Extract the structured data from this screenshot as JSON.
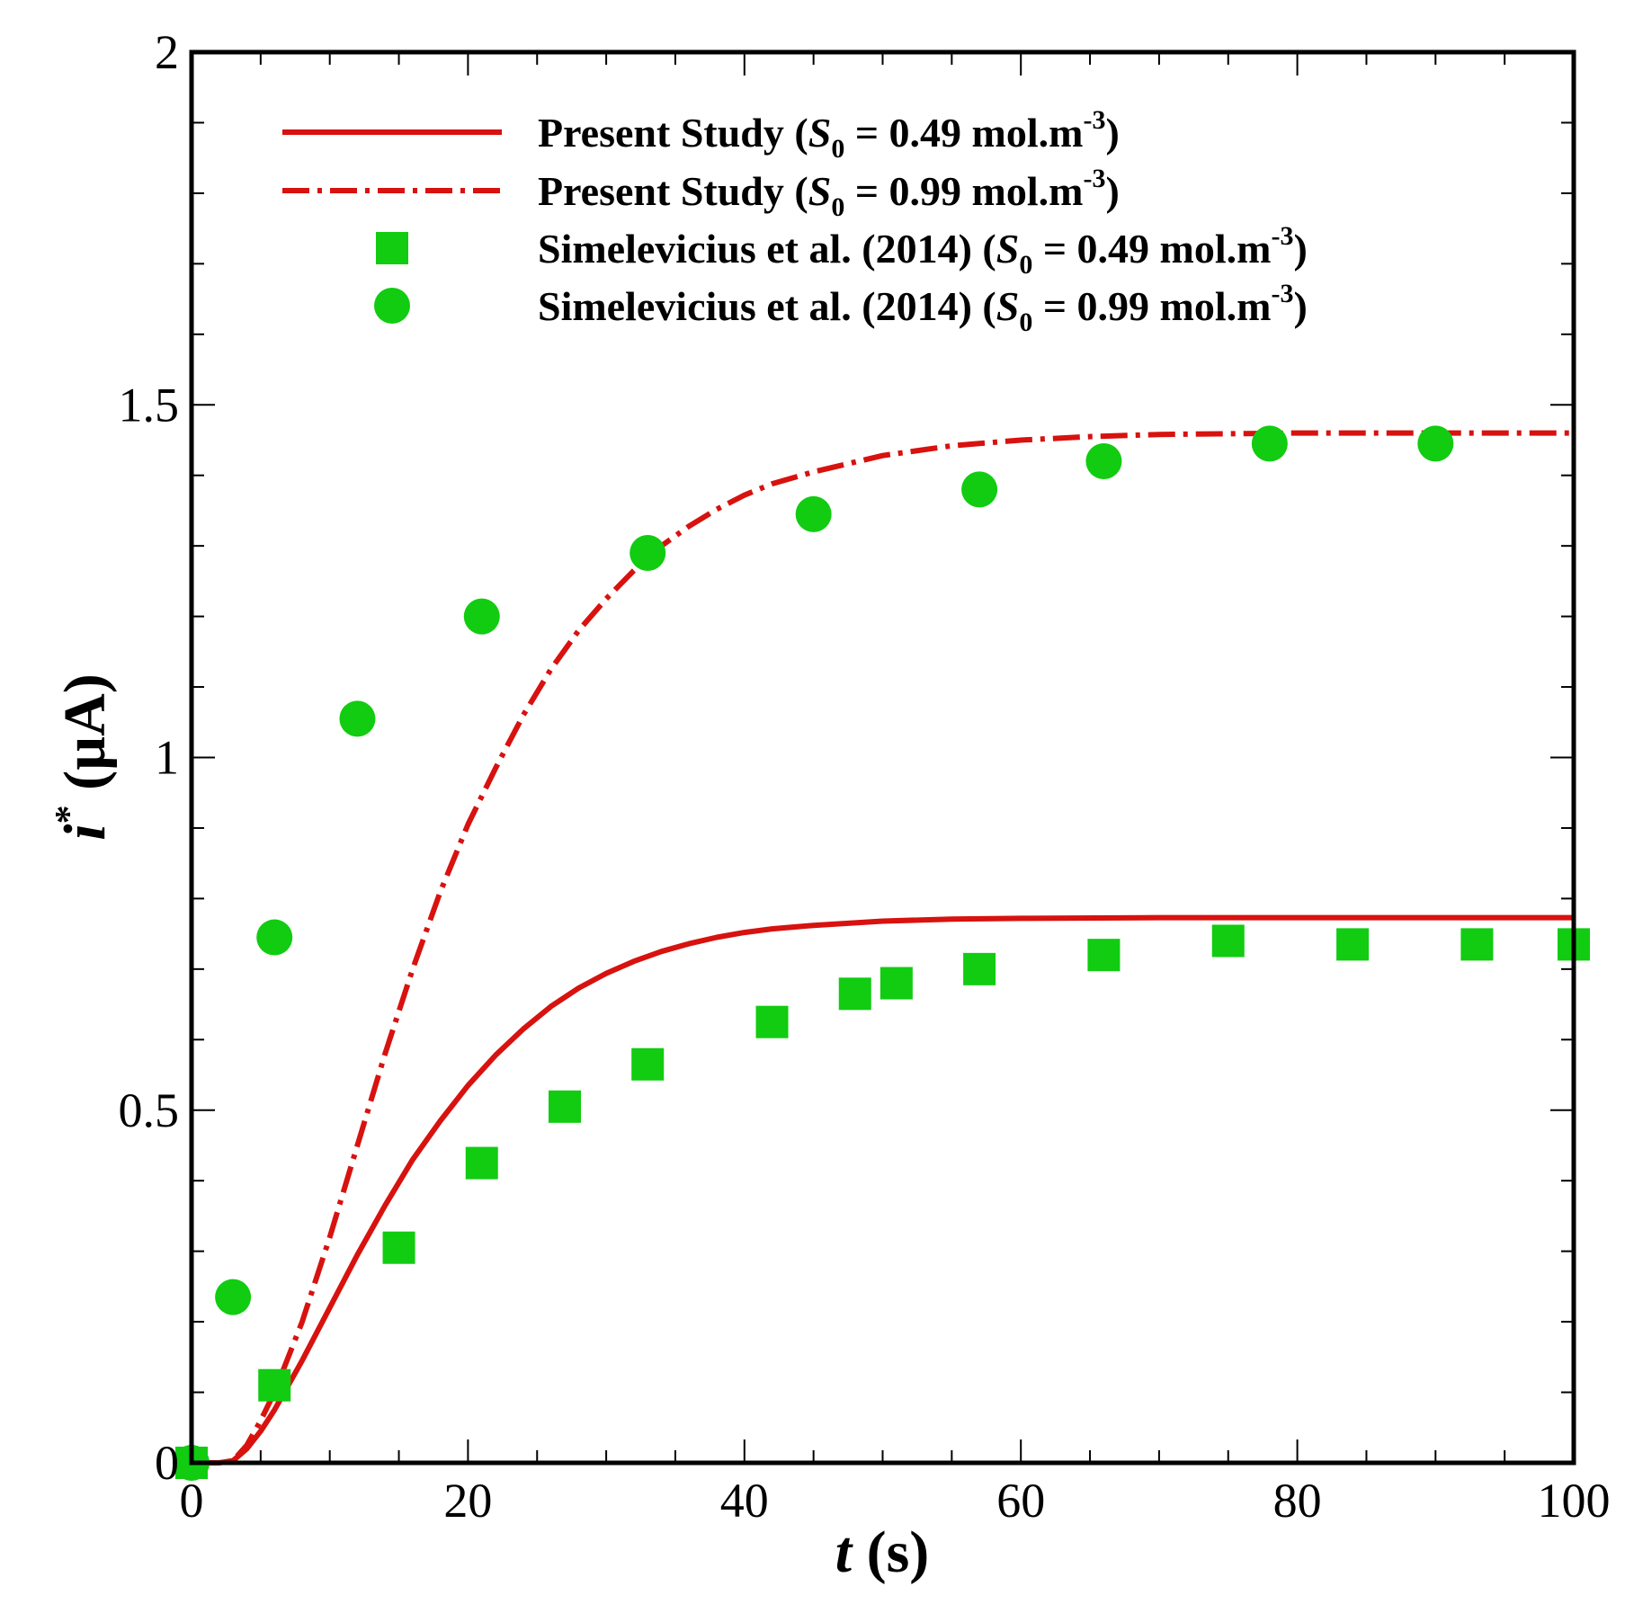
{
  "chart_data": {
    "type": "line",
    "xlabel": {
      "var": "t",
      "unit": " (s)"
    },
    "ylabel": {
      "var": "i",
      "sup": "*",
      "unit": " (µA)"
    },
    "xlim": [
      0,
      100
    ],
    "ylim": [
      0,
      2
    ],
    "x_ticks": [
      0,
      20,
      40,
      60,
      80,
      100
    ],
    "x_tick_labels": [
      "0",
      "20",
      "40",
      "60",
      "80",
      "100"
    ],
    "y_ticks": [
      0,
      0.5,
      1,
      1.5,
      2
    ],
    "y_tick_labels": [
      "0",
      "0.5",
      "1",
      "1.5",
      "2"
    ],
    "x_minor_step": 5,
    "y_minor_step": 0.1,
    "series": [
      {
        "name": "Present Study (S0 = 0.49 mol.m-3)",
        "legend": {
          "prefix": "Present Study (",
          "var": "S",
          "sub": "0",
          "mid": " = 0.49 mol.m",
          "sup": "-3",
          "suffix": ")"
        },
        "kind": "line",
        "style": "solid",
        "color": "#d7120f",
        "x": [
          0,
          2,
          3,
          4,
          5,
          6,
          8,
          10,
          12,
          14,
          16,
          18,
          20,
          22,
          24,
          26,
          28,
          30,
          32,
          34,
          36,
          38,
          40,
          42,
          45,
          50,
          55,
          60,
          70,
          80,
          90,
          100
        ],
        "y": [
          0,
          0,
          0.003,
          0.02,
          0.045,
          0.075,
          0.145,
          0.22,
          0.295,
          0.365,
          0.43,
          0.485,
          0.535,
          0.578,
          0.615,
          0.647,
          0.673,
          0.694,
          0.711,
          0.725,
          0.736,
          0.745,
          0.752,
          0.757,
          0.762,
          0.768,
          0.771,
          0.772,
          0.773,
          0.773,
          0.773,
          0.773
        ]
      },
      {
        "name": "Present Study (S0 = 0.99 mol.m-3)",
        "legend": {
          "prefix": "Present Study (",
          "var": "S",
          "sub": "0",
          "mid": " = 0.99 mol.m",
          "sup": "-3",
          "suffix": ")"
        },
        "kind": "line",
        "style": "dashdot",
        "color": "#d7120f",
        "x": [
          0,
          2,
          3,
          4,
          5,
          6,
          8,
          10,
          12,
          14,
          16,
          18,
          20,
          22,
          24,
          26,
          28,
          30,
          32,
          34,
          36,
          38,
          40,
          42,
          45,
          50,
          55,
          60,
          65,
          70,
          80,
          90,
          100
        ],
        "y": [
          0,
          0,
          0.003,
          0.025,
          0.06,
          0.1,
          0.2,
          0.32,
          0.45,
          0.58,
          0.7,
          0.81,
          0.905,
          0.985,
          1.06,
          1.125,
          1.18,
          1.225,
          1.265,
          1.3,
          1.328,
          1.352,
          1.372,
          1.388,
          1.405,
          1.428,
          1.442,
          1.45,
          1.455,
          1.458,
          1.46,
          1.46,
          1.46
        ]
      },
      {
        "name": "Simelevicius et al. (2014) (S0 = 0.49 mol.m-3)",
        "legend": {
          "prefix": "Simelevicius et al. (2014) (",
          "var": "S",
          "sub": "0",
          "mid": " = 0.49 mol.m",
          "sup": "-3",
          "suffix": ")"
        },
        "kind": "scatter",
        "marker": "square",
        "color": "#11cc11",
        "x": [
          0,
          6,
          15,
          21,
          27,
          33,
          42,
          48,
          51,
          57,
          66,
          75,
          84,
          93,
          100
        ],
        "y": [
          0,
          0.11,
          0.305,
          0.425,
          0.505,
          0.565,
          0.625,
          0.665,
          0.68,
          0.7,
          0.72,
          0.74,
          0.735,
          0.735,
          0.735
        ]
      },
      {
        "name": "Simelevicius et al. (2014) (S0 = 0.99 mol.m-3)",
        "legend": {
          "prefix": "Simelevicius et al. (2014) (",
          "var": "S",
          "sub": "0",
          "mid": " = 0.99 mol.m",
          "sup": "-3",
          "suffix": ")"
        },
        "kind": "scatter",
        "marker": "circle",
        "color": "#11cc11",
        "x": [
          0,
          3,
          6,
          12,
          21,
          33,
          45,
          57,
          66,
          78,
          90
        ],
        "y": [
          0,
          0.235,
          0.745,
          1.055,
          1.2,
          1.29,
          1.345,
          1.38,
          1.42,
          1.445,
          1.445
        ]
      }
    ]
  }
}
